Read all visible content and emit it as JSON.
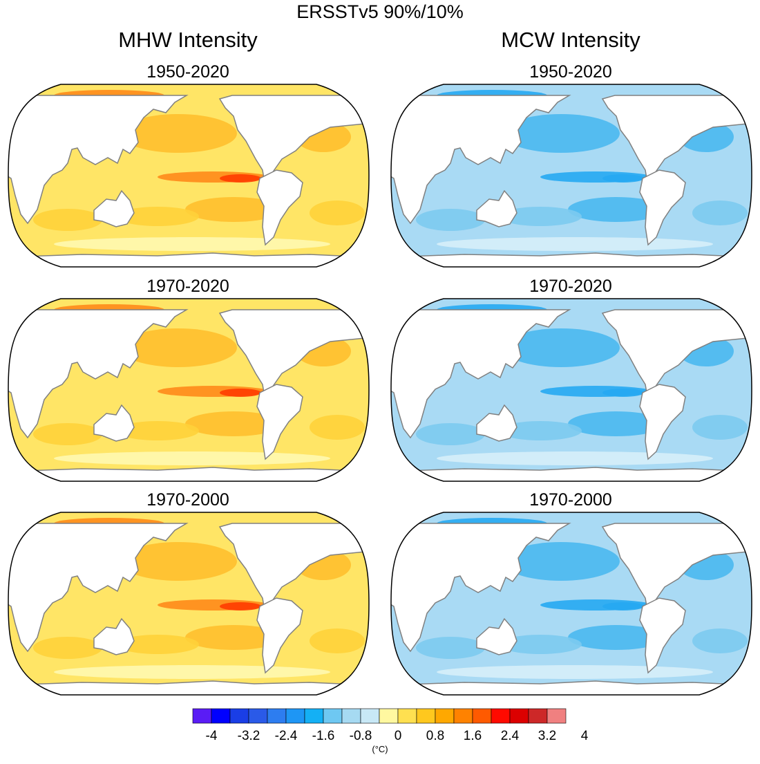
{
  "title": "ERSSTv5 90%/10%",
  "columns": [
    {
      "title": "MHW Intensity",
      "palette": "warm",
      "panels": [
        "1950-2020",
        "1970-2020",
        "1970-2000"
      ]
    },
    {
      "title": "MCW Intensity",
      "palette": "cool",
      "panels": [
        "1950-2020",
        "1970-2020",
        "1970-2000"
      ]
    }
  ],
  "colorbar": {
    "colors": [
      "#5a1cf5",
      "#0000ff",
      "#1a3ee6",
      "#2a5ae8",
      "#2d7df0",
      "#1e96f5",
      "#14b0f5",
      "#6ec8f2",
      "#a6daf2",
      "#c8e8f6",
      "#fff8a0",
      "#ffe050",
      "#ffc81e",
      "#ffa800",
      "#ff8200",
      "#ff5a00",
      "#ff0a00",
      "#dc0000",
      "#cd2828",
      "#f08080"
    ],
    "ticks": [
      "-4",
      "-3.2",
      "-2.4",
      "-1.6",
      "-0.8",
      "0",
      "0.8",
      "1.6",
      "2.4",
      "3.2",
      "4"
    ],
    "units": "(°C)"
  },
  "palette_colors": {
    "warm": [
      "#fff8b0",
      "#ffe566",
      "#ffd23a",
      "#ffbf2e",
      "#ff8a1a",
      "#ff3c00"
    ],
    "cool": [
      "#d6eefa",
      "#a9daf4",
      "#7ccaf0",
      "#4ab8f0",
      "#26a8f2"
    ],
    "land": "#ffffff",
    "coast": "#808080"
  }
}
